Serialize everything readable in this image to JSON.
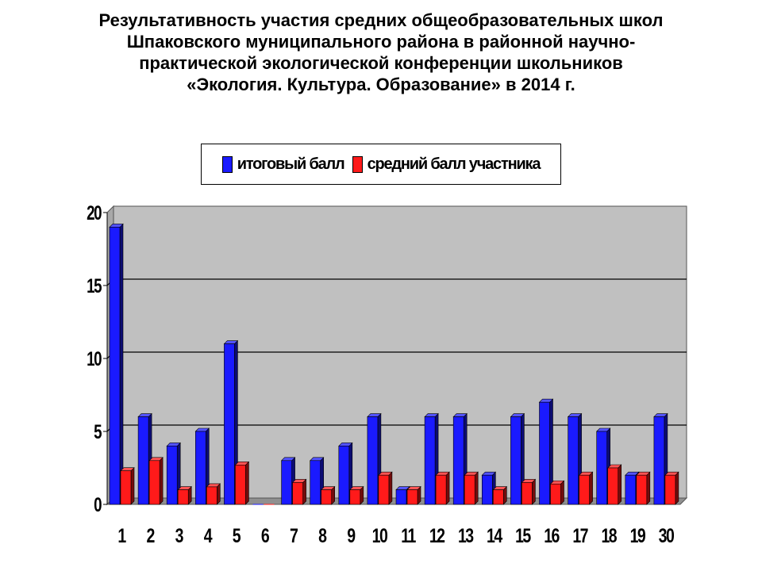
{
  "title_lines": [
    "Результативность участия средних общеобразовательных школ",
    "Шпаковского муниципального района в районной научно-",
    "практической экологической конференции школьников",
    "«Экология. Культура. Образование» в 2014 г."
  ],
  "colors": {
    "series1": "#1a1aff",
    "series2": "#ff1a1a",
    "plot_background": "#c0c0c0",
    "grid": "#000000"
  },
  "chart_data": {
    "type": "bar",
    "title": "Результативность участия средних общеобразовательных школ Шпаковского муниципального района в районной научно-практической экологической конференции школьников «Экология. Культура. Образование» в 2014 г.",
    "categories": [
      "1",
      "2",
      "3",
      "4",
      "5",
      "6",
      "7",
      "8",
      "9",
      "10",
      "11",
      "12",
      "13",
      "14",
      "15",
      "16",
      "17",
      "18",
      "19",
      "30"
    ],
    "series": [
      {
        "name": "итоговый балл",
        "values": [
          19,
          6,
          4,
          5,
          11,
          0,
          3,
          3,
          4,
          6,
          1,
          6,
          6,
          2,
          6,
          7,
          6,
          5,
          2,
          6
        ]
      },
      {
        "name": "средний балл участника",
        "values": [
          2.3,
          3,
          1,
          1.2,
          2.7,
          0,
          1.5,
          1,
          1,
          2,
          1,
          2,
          2,
          1,
          1.5,
          1.4,
          2,
          2.5,
          2,
          2
        ]
      }
    ],
    "ylim": [
      0,
      20
    ],
    "yticks": [
      "0",
      "5",
      "10",
      "15",
      "20"
    ],
    "grid": true,
    "legend_position": "top",
    "style": "3d"
  }
}
